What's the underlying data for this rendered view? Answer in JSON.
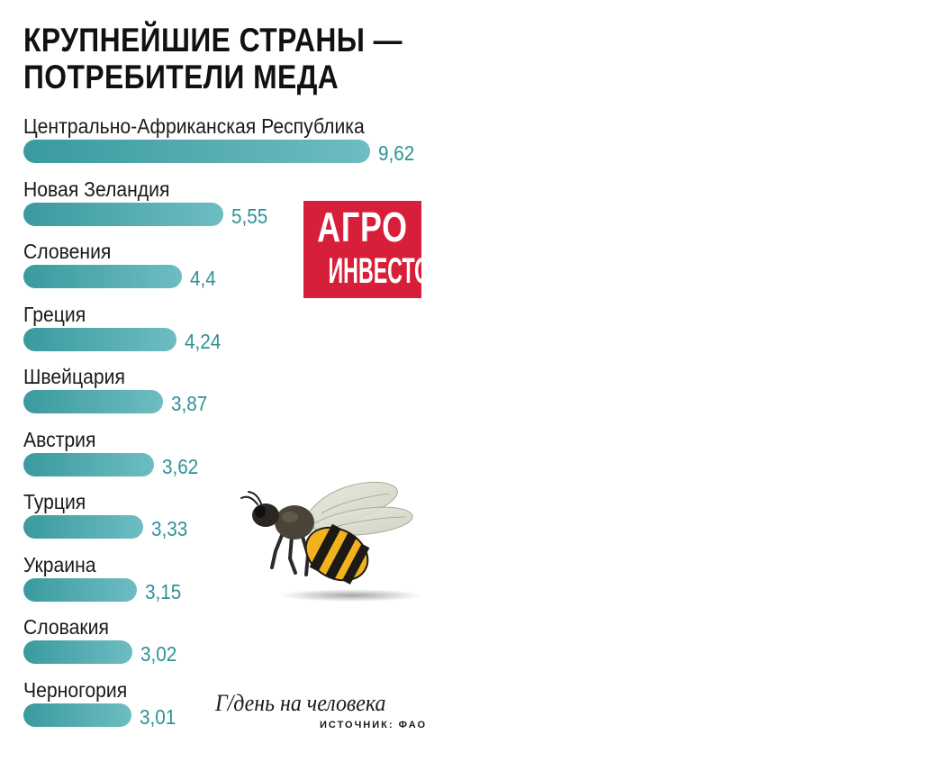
{
  "title_lines": [
    "КРУПНЕЙШИЕ СТРАНЫ —",
    "ПОТРЕБИТЕЛИ МЕДА"
  ],
  "logo": {
    "line1": "АГРО",
    "line2": "ИНВЕСТОР",
    "color": "#d81f3a"
  },
  "unit_note": "Г/день на человека",
  "source_note": "ИСТОЧНИК: ФАО",
  "colors": {
    "bar_start": "#3a9a9f",
    "bar_end": "#6dbdc2",
    "value_text": "#2f9298"
  },
  "chart_data": {
    "type": "bar",
    "orientation": "horizontal",
    "title": "КРУПНЕЙШИЕ СТРАНЫ — ПОТРЕБИТЕЛИ МЕДА",
    "unit": "Г/день на человека",
    "categories": [
      "Центрально-Африканская Республика",
      "Новая Зеландия",
      "Словения",
      "Греция",
      "Швейцария",
      "Австрия",
      "Турция",
      "Украина",
      "Словакия",
      "Черногория"
    ],
    "values": [
      9.62,
      5.55,
      4.4,
      4.24,
      3.87,
      3.62,
      3.33,
      3.15,
      3.02,
      3.01
    ],
    "value_labels": [
      "9,62",
      "5,55",
      "4,4",
      "4,24",
      "3,87",
      "3,62",
      "3,33",
      "3,15",
      "3,02",
      "3,01"
    ],
    "xlim": [
      0,
      9.62
    ],
    "grid": false,
    "legend": "none"
  }
}
